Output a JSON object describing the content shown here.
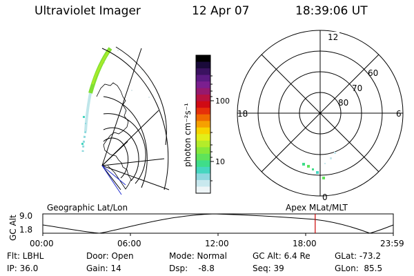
{
  "header": {
    "instrument": "Ultraviolet Imager",
    "date": "12 Apr 07",
    "time": "18:39:06 UT"
  },
  "colorbar": {
    "label": "photon cm⁻²s⁻¹",
    "ticks": [
      "100",
      "10"
    ],
    "colors": [
      "#000000",
      "#1a0a3a",
      "#3a1260",
      "#5b1a82",
      "#7b1f8f",
      "#96196e",
      "#b81240",
      "#d00a14",
      "#e6300a",
      "#f06a00",
      "#f6a000",
      "#f7d400",
      "#e2ef1a",
      "#b4ec2a",
      "#86e83a",
      "#5fe35a",
      "#3fdd8a",
      "#46d6c0",
      "#8fd8df",
      "#c8e8ee",
      "#eef5f7"
    ]
  },
  "polar": {
    "mlt_labels": [
      "12",
      "18",
      "6",
      "0"
    ],
    "lat_labels": [
      "60",
      "70",
      "80"
    ]
  },
  "timeline": {
    "left_label": "Geographic Lat/Lon",
    "right_label": "Apex MLat/MLT",
    "axis_label": "GC Alt",
    "y_ticks": [
      "9.0",
      "1.8"
    ],
    "x_ticks": [
      "00:00",
      "06:00",
      "12:00",
      "18:00",
      "23:59"
    ],
    "current_fraction": 0.7772,
    "marker_color": "#cc0000"
  },
  "info": {
    "row1": [
      "Flt: LBHL",
      "Door: Open",
      "Mode: Normal",
      "GC Alt: 6.4 Re",
      "GLat: -73.2"
    ],
    "row2": [
      "IP: 36.0",
      "Gain: 14",
      "Dsp:    -8.8",
      "Seq: 39",
      "GLon:  85.5"
    ]
  }
}
